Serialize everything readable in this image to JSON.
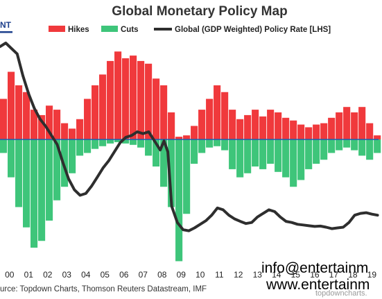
{
  "colors": {
    "hikes": "#f0393c",
    "cuts": "#3ec57a",
    "policy_line": "#2e2e2e",
    "zero_line": "#1a5fb4",
    "logo": "#1d3f8c"
  },
  "logo": {
    "text": "NT",
    "icon": "partial-logo"
  },
  "chart_data": {
    "type": "bar",
    "title": "Global Monetary Policy Map",
    "legend": [
      {
        "name": "Hikes",
        "color": "#f0393c",
        "kind": "bar"
      },
      {
        "name": "Cuts",
        "color": "#3ec57a",
        "kind": "bar"
      },
      {
        "name": "Global (GDP Weighted) Policy Rate [LHS]",
        "color": "#2e2e2e",
        "kind": "line"
      }
    ],
    "legend_position": "top",
    "x_tick_labels": [
      "00",
      "01",
      "02",
      "03",
      "04",
      "05",
      "06",
      "07",
      "08",
      "09",
      "10",
      "11",
      "12",
      "13",
      "14",
      "15",
      "16",
      "17",
      "18",
      "19"
    ],
    "x_range": [
      2000.0,
      2019.85
    ],
    "grid": false,
    "series": [
      {
        "name": "Hikes",
        "kind": "bar",
        "x": [
          2000.0,
          2000.4,
          2000.8,
          2001.2,
          2001.6,
          2002.0,
          2002.4,
          2002.8,
          2003.2,
          2003.6,
          2004.0,
          2004.4,
          2004.8,
          2005.2,
          2005.6,
          2006.0,
          2006.4,
          2006.8,
          2007.2,
          2007.6,
          2008.0,
          2008.4,
          2008.8,
          2009.2,
          2009.6,
          2010.0,
          2010.4,
          2010.8,
          2011.2,
          2011.6,
          2012.0,
          2012.4,
          2012.8,
          2013.2,
          2013.6,
          2014.0,
          2014.4,
          2014.8,
          2015.2,
          2015.6,
          2016.0,
          2016.4,
          2016.8,
          2017.2,
          2017.6,
          2018.0,
          2018.4,
          2018.8,
          2019.2,
          2019.6
        ],
        "values": [
          30,
          50,
          40,
          35,
          22,
          18,
          25,
          22,
          12,
          8,
          15,
          30,
          40,
          48,
          58,
          65,
          60,
          62,
          58,
          56,
          45,
          40,
          20,
          2,
          3,
          10,
          22,
          30,
          40,
          35,
          22,
          15,
          18,
          22,
          17,
          22,
          20,
          16,
          14,
          11,
          9,
          11,
          12,
          16,
          20,
          24,
          20,
          24,
          12,
          3
        ]
      },
      {
        "name": "Cuts",
        "kind": "bar",
        "x": [
          2000.0,
          2000.4,
          2000.8,
          2001.2,
          2001.6,
          2002.0,
          2002.4,
          2002.8,
          2003.2,
          2003.6,
          2004.0,
          2004.4,
          2004.8,
          2005.2,
          2005.6,
          2006.0,
          2006.4,
          2006.8,
          2007.2,
          2007.6,
          2008.0,
          2008.4,
          2008.8,
          2009.2,
          2009.6,
          2010.0,
          2010.4,
          2010.8,
          2011.2,
          2011.6,
          2012.0,
          2012.4,
          2012.8,
          2013.2,
          2013.6,
          2014.0,
          2014.4,
          2014.8,
          2015.2,
          2015.6,
          2016.0,
          2016.4,
          2016.8,
          2017.2,
          2017.6,
          2018.0,
          2018.4,
          2018.8,
          2019.2,
          2019.6
        ],
        "values": [
          -10,
          -28,
          -50,
          -65,
          -80,
          -75,
          -60,
          -45,
          -35,
          -25,
          -12,
          -10,
          -7,
          -5,
          -3,
          -2,
          -3,
          -4,
          -6,
          -12,
          -20,
          -35,
          -50,
          -90,
          -55,
          -18,
          -10,
          -6,
          -5,
          -8,
          -22,
          -28,
          -25,
          -20,
          -22,
          -18,
          -24,
          -28,
          -35,
          -30,
          -22,
          -18,
          -15,
          -10,
          -8,
          -6,
          -8,
          -12,
          -15,
          -10
        ]
      },
      {
        "name": "Global (GDP Weighted) Policy Rate [LHS]",
        "kind": "line",
        "x": [
          2000.0,
          2000.3,
          2000.6,
          2000.9,
          2001.2,
          2001.5,
          2001.8,
          2002.1,
          2002.4,
          2002.7,
          2003.0,
          2003.3,
          2003.6,
          2003.9,
          2004.2,
          2004.5,
          2004.8,
          2005.1,
          2005.4,
          2005.7,
          2006.0,
          2006.3,
          2006.6,
          2006.9,
          2007.2,
          2007.5,
          2007.8,
          2008.1,
          2008.4,
          2008.6,
          2008.8,
          2009.0,
          2009.3,
          2009.6,
          2009.9,
          2010.2,
          2010.5,
          2010.8,
          2011.1,
          2011.4,
          2011.7,
          2012.0,
          2012.3,
          2012.6,
          2012.9,
          2013.2,
          2013.5,
          2013.8,
          2014.1,
          2014.4,
          2014.7,
          2015.0,
          2015.3,
          2015.6,
          2015.9,
          2016.2,
          2016.5,
          2016.8,
          2017.1,
          2017.4,
          2017.7,
          2018.0,
          2018.3,
          2018.6,
          2018.9,
          2019.2,
          2019.5,
          2019.8
        ],
        "values": [
          5.8,
          5.9,
          5.75,
          5.6,
          5.0,
          4.5,
          4.1,
          3.8,
          3.6,
          3.35,
          3.1,
          2.6,
          2.15,
          1.85,
          1.7,
          1.75,
          1.95,
          2.2,
          2.45,
          2.65,
          2.9,
          3.15,
          3.3,
          3.35,
          3.45,
          3.4,
          3.45,
          3.2,
          2.95,
          3.2,
          2.9,
          1.4,
          0.95,
          0.75,
          0.72,
          0.8,
          0.9,
          1.0,
          1.15,
          1.35,
          1.3,
          1.15,
          1.05,
          0.98,
          0.92,
          0.95,
          1.1,
          1.2,
          1.3,
          1.25,
          1.1,
          0.98,
          0.95,
          0.9,
          0.88,
          0.86,
          0.84,
          0.85,
          0.82,
          0.78,
          0.8,
          0.82,
          0.95,
          1.15,
          1.2,
          1.22,
          1.18,
          1.15
        ]
      }
    ]
  },
  "source_text": "urce: Topdown Charts, Thomson Reuters Datastream, IMF",
  "watermark": {
    "topdown": "topdowncharts.",
    "email": "info@entertainm",
    "website": "www.entertainm"
  }
}
